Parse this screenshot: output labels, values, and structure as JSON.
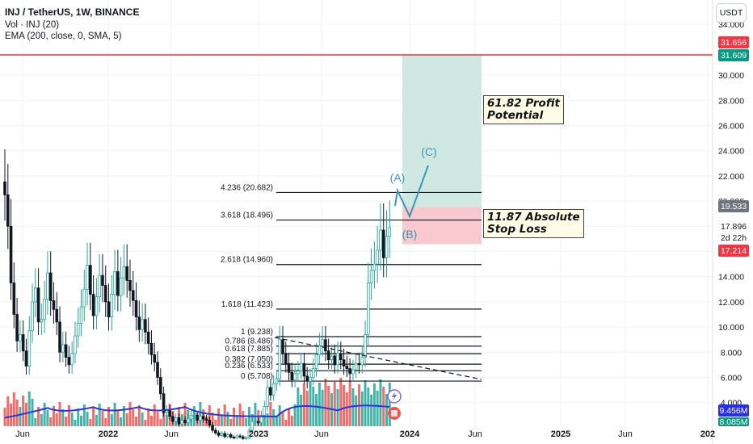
{
  "header": {
    "title": "INJ / TetherUS, 1W, BINANCE",
    "volume": "Vol · INJ (20)",
    "ema": "EMA (200, close, 0, SMA, 5)"
  },
  "currency_button": "USDT",
  "price_tags": {
    "target_upper": "31.656",
    "target_lower": "31.609",
    "stop": "19.533",
    "last": "17.896",
    "countdown": "2d 22h",
    "entry": "17.214",
    "ema_val": "9.456M",
    "vol_val": "8.085M"
  },
  "notes": {
    "profit": [
      "61.82 Profit",
      "Potential"
    ],
    "stop": [
      "11.87 Absolute",
      "Stop Loss"
    ]
  },
  "wave_labels": [
    "(A)",
    "(B)",
    "(C)"
  ],
  "colors": {
    "up": "#26a69a",
    "down": "#131722",
    "vol_up": "#26a69a",
    "vol_down": "#ef5350",
    "ema": "#2a36d9",
    "target_line": "#e0363d",
    "profit_zone": "#cfe9e2",
    "loss_zone": "#f8c9cf",
    "wave": "#3b97b7"
  },
  "icons": [
    "lightning-icon",
    "flag-icon"
  ],
  "chart_data": {
    "type": "candlestick",
    "title": "INJ / TetherUS, 1W, BINANCE",
    "y_axis": {
      "ticks": [
        4,
        6,
        8,
        10,
        12,
        14,
        16,
        18,
        20,
        22,
        24,
        26,
        28,
        30,
        34
      ],
      "tick_labels": [
        "4.000",
        "6.000",
        "8.000",
        "10.000",
        "12.000",
        "14.000",
        "16.000",
        "18.000",
        "20.000",
        "22.000",
        "24.000",
        "26.000",
        "28.000",
        "30.000",
        "34.000"
      ]
    },
    "x_axis": {
      "tick_labels": [
        "Jun",
        "2022",
        "Jun",
        "2023",
        "Jun",
        "2024",
        "Jun",
        "2025",
        "Jun",
        "202"
      ]
    },
    "fib_levels": [
      {
        "label": "4.236 (20.682)",
        "value": 20.682
      },
      {
        "label": "3.618 (18.496)",
        "value": 18.496
      },
      {
        "label": "2.618 (14.960)",
        "value": 14.96
      },
      {
        "label": "1.618 (11.423)",
        "value": 11.423
      },
      {
        "label": "1 (9.238)",
        "value": 9.238
      },
      {
        "label": "0.786 (8.486)",
        "value": 8.486
      },
      {
        "label": "0.618 (7.885)",
        "value": 7.885
      },
      {
        "label": "0.382 (7.050)",
        "value": 7.05
      },
      {
        "label": "0.236 (6.533)",
        "value": 6.533
      },
      {
        "label": "0 (5.708)",
        "value": 5.708
      }
    ],
    "target_price": 31.609,
    "stop_price": 19.533,
    "entry_price": 17.214,
    "last_price": 17.896,
    "closes": [
      20.5,
      18.0,
      13.5,
      11.0,
      8.9,
      9.4,
      8.1,
      6.9,
      9.7,
      12.0,
      13.1,
      10.4,
      10.6,
      12.2,
      14.3,
      12.1,
      11.4,
      10.4,
      8.0,
      8.6,
      7.6,
      7.0,
      7.9,
      9.3,
      10.3,
      11.6,
      13.0,
      14.9,
      12.6,
      10.9,
      12.4,
      14.1,
      13.3,
      12.0,
      10.8,
      12.6,
      14.4,
      12.5,
      13.9,
      14.8,
      13.7,
      12.9,
      12.1,
      10.8,
      9.8,
      10.6,
      9.6,
      8.7,
      7.8,
      7.2,
      6.0,
      4.7,
      3.2,
      3.4,
      2.9,
      2.5,
      2.8,
      2.3,
      2.6,
      2.4,
      2.7,
      3.0,
      3.0,
      2.6,
      2.9,
      2.7,
      2.6,
      2.2,
      1.8,
      1.6,
      1.4,
      1.55,
      1.3,
      1.45,
      1.25,
      1.2,
      1.35,
      1.28,
      1.15,
      1.2,
      1.8,
      2.5,
      2.5,
      2.4,
      3.0,
      3.7,
      5.2,
      4.6,
      5.5,
      5.9,
      9.0,
      7.9,
      7.1,
      6.4,
      5.8,
      6.3,
      6.5,
      7.1,
      6.1,
      5.7,
      6.0,
      6.7,
      7.8,
      8.5,
      9.0,
      8.1,
      7.4,
      7.7,
      7.0,
      7.9,
      7.4,
      6.9,
      6.7,
      6.3,
      6.6,
      7.1,
      7.0,
      7.6,
      9.4,
      13.5,
      14.5,
      15.0,
      16.1,
      17.7,
      15.5,
      17.2,
      17.9
    ]
  }
}
